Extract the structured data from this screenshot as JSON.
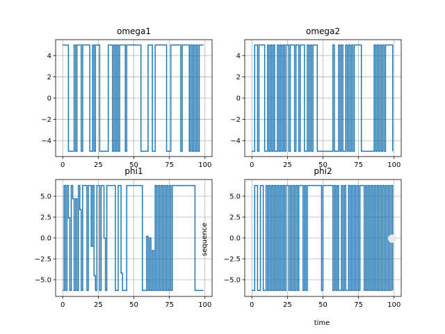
{
  "figure": {
    "xlabel": "time",
    "ylabel": "sequence"
  },
  "chart_data": [
    {
      "type": "line",
      "title": "omega1",
      "xlim": [
        -5,
        105
      ],
      "ylim": [
        -5.5,
        5.5
      ],
      "xticks": [
        0,
        25,
        50,
        75,
        100
      ],
      "xticklabels": [
        "0",
        "25",
        "50",
        "75",
        "100"
      ],
      "yticks": [
        4,
        2,
        0,
        -2,
        -4
      ],
      "yticklabels": [
        "4",
        "2",
        "0",
        "−2",
        "−4"
      ],
      "grid": true,
      "color": "#1f77b4",
      "series": [
        {
          "x": [
            0,
            1,
            2,
            3,
            4,
            5,
            6,
            7,
            8,
            9,
            10,
            11,
            12,
            13,
            14,
            15,
            16,
            17,
            18,
            19,
            20,
            21,
            22,
            23,
            24,
            25,
            26,
            27,
            28,
            29,
            30,
            31,
            32,
            33,
            34,
            35,
            36,
            37,
            38,
            39,
            40,
            41,
            42,
            43,
            44,
            45,
            46,
            47,
            48,
            49,
            50,
            51,
            52,
            53,
            54,
            55,
            56,
            57,
            58,
            59,
            60,
            61,
            62,
            63,
            64,
            65,
            66,
            67,
            68,
            69,
            70,
            71,
            72,
            73,
            74,
            75,
            76,
            77,
            78,
            79,
            80,
            81,
            82,
            83,
            84,
            85,
            86,
            87,
            88,
            89,
            90,
            91,
            92,
            93,
            94,
            95,
            96,
            97,
            98,
            99
          ],
          "y": [
            5,
            5,
            5,
            5,
            -5,
            -5,
            -5,
            -5,
            5,
            -5,
            5,
            5,
            5,
            -5,
            5,
            5,
            5,
            5,
            5,
            -5,
            -5,
            5,
            -5,
            5,
            5,
            5,
            -5,
            -5,
            -5,
            -5,
            -5,
            -5,
            5,
            5,
            5,
            -5,
            5,
            -5,
            5,
            -5,
            5,
            5,
            5,
            5,
            -5,
            5,
            5,
            5,
            5,
            5,
            5,
            5,
            5,
            5,
            5,
            -5,
            -5,
            -5,
            -5,
            -5,
            5,
            5,
            5,
            -5,
            -5,
            5,
            5,
            5,
            5,
            5,
            5,
            5,
            5,
            -5,
            -5,
            -5,
            5,
            5,
            5,
            5,
            5,
            5,
            5,
            -5,
            5,
            5,
            5,
            5,
            5,
            -5,
            5,
            -5,
            5,
            -5,
            5,
            -5,
            5,
            5,
            5,
            5
          ]
        }
      ]
    },
    {
      "type": "line",
      "title": "omega2",
      "xlim": [
        -5,
        105
      ],
      "ylim": [
        -5.5,
        5.5
      ],
      "xticks": [
        0,
        25,
        50,
        75,
        100
      ],
      "xticklabels": [
        "0",
        "25",
        "50",
        "75",
        "100"
      ],
      "yticks": [
        4,
        2,
        0,
        -2,
        -4
      ],
      "yticklabels": [
        "4",
        "2",
        "0",
        "−2",
        "−4"
      ],
      "grid": true,
      "color": "#1f77b4",
      "series": [
        {
          "x": [
            0,
            1,
            2,
            3,
            4,
            5,
            6,
            7,
            8,
            9,
            10,
            11,
            12,
            13,
            14,
            15,
            16,
            17,
            18,
            19,
            20,
            21,
            22,
            23,
            24,
            25,
            26,
            27,
            28,
            29,
            30,
            31,
            32,
            33,
            34,
            35,
            36,
            37,
            38,
            39,
            40,
            41,
            42,
            43,
            44,
            45,
            46,
            47,
            48,
            49,
            50,
            51,
            52,
            53,
            54,
            55,
            56,
            57,
            58,
            59,
            60,
            61,
            62,
            63,
            64,
            65,
            66,
            67,
            68,
            69,
            70,
            71,
            72,
            73,
            74,
            75,
            76,
            77,
            78,
            79,
            80,
            81,
            82,
            83,
            84,
            85,
            86,
            87,
            88,
            89,
            90,
            91,
            92,
            93,
            94,
            95,
            96,
            97,
            98,
            99
          ],
          "y": [
            -5,
            -5,
            5,
            5,
            -5,
            5,
            5,
            5,
            5,
            -5,
            -5,
            5,
            -5,
            5,
            -5,
            5,
            -5,
            -5,
            5,
            -5,
            5,
            -5,
            5,
            -5,
            5,
            5,
            -5,
            5,
            5,
            5,
            -5,
            5,
            5,
            -5,
            5,
            5,
            5,
            -5,
            -5,
            5,
            -5,
            5,
            -5,
            5,
            5,
            5,
            -5,
            -5,
            -5,
            -5,
            -5,
            -5,
            -5,
            -5,
            -5,
            -5,
            -5,
            5,
            -5,
            -5,
            -5,
            5,
            -5,
            5,
            -5,
            -5,
            5,
            -5,
            5,
            -5,
            5,
            -5,
            5,
            5,
            5,
            5,
            5,
            -5,
            -5,
            -5,
            -5,
            -5,
            -5,
            -5,
            -5,
            -5,
            5,
            -5,
            5,
            -5,
            5,
            -5,
            5,
            -5,
            5,
            5,
            5,
            5,
            5,
            -5
          ]
        }
      ]
    },
    {
      "type": "line",
      "title": "phi1",
      "xlim": [
        -5,
        105
      ],
      "ylim": [
        -7,
        7
      ],
      "xticks": [
        0,
        25,
        50,
        75,
        100
      ],
      "xticklabels": [
        "0",
        "25",
        "50",
        "75",
        "100"
      ],
      "yticks": [
        5,
        2.5,
        0,
        -2.5,
        -5
      ],
      "yticklabels": [
        "5.0",
        "2.5",
        "0.0",
        "−2.5",
        "−5.0"
      ],
      "grid": true,
      "color": "#1f77b4",
      "series": [
        {
          "x": [
            0,
            1,
            2,
            3,
            4,
            5,
            6,
            7,
            8,
            9,
            10,
            11,
            12,
            13,
            14,
            15,
            16,
            17,
            18,
            19,
            20,
            21,
            22,
            23,
            24,
            25,
            26,
            27,
            28,
            29,
            30,
            31,
            32,
            33,
            34,
            35,
            36,
            37,
            38,
            39,
            40,
            41,
            42,
            43,
            44,
            45,
            46,
            47,
            48,
            49,
            50,
            51,
            52,
            53,
            54,
            55,
            56,
            57,
            58,
            59,
            60,
            61,
            62,
            63,
            64,
            65,
            66,
            67,
            68,
            69,
            70,
            71,
            72,
            73,
            74,
            75,
            76,
            77,
            78,
            79,
            80,
            81,
            82,
            83,
            84,
            85,
            86,
            87,
            88,
            89,
            90,
            91,
            92,
            93,
            94,
            95,
            96,
            97,
            98,
            99
          ],
          "y": [
            -6.28,
            6.28,
            -6.28,
            6.28,
            2.4,
            -6.28,
            6.28,
            4.7,
            -6.28,
            4.7,
            -6.28,
            6.28,
            3.4,
            -6.28,
            6.28,
            6.28,
            6.28,
            -6.28,
            6.28,
            6.28,
            -1,
            6.28,
            -4.5,
            -6.28,
            6.28,
            6.28,
            -6.28,
            6.28,
            6.28,
            0,
            -6.28,
            6.28,
            6.28,
            6.28,
            6.28,
            6.28,
            6.28,
            -6.28,
            -6.28,
            6.28,
            6.28,
            -4.2,
            -6.28,
            -6.28,
            -6.28,
            6.28,
            6.28,
            6.28,
            6.28,
            6.28,
            6.28,
            6.28,
            6.28,
            6.28,
            6.28,
            6.28,
            -6.28,
            -6.28,
            -6.28,
            0.2,
            -6.28,
            0,
            -6.28,
            -1.5,
            -6.28,
            6.28,
            -6.28,
            6.28,
            -6.28,
            6.28,
            -6.28,
            6.28,
            -6.28,
            6.28,
            -6.28,
            6.28,
            -6.28,
            6.28,
            6.28,
            6.28,
            6.28,
            6.28,
            6.28,
            6.28,
            6.28,
            6.28,
            6.28,
            6.28,
            6.28,
            6.28,
            6.28,
            6.28,
            6.28,
            -6.28,
            -6.28,
            -6.28,
            -6.28,
            -6.28,
            -6.28,
            -6.28
          ]
        }
      ]
    },
    {
      "type": "line",
      "title": "phi2",
      "xlim": [
        -5,
        105
      ],
      "ylim": [
        -7,
        7
      ],
      "xticks": [
        0,
        25,
        50,
        75,
        100
      ],
      "xticklabels": [
        "0",
        "25",
        "50",
        "75",
        "100"
      ],
      "yticks": [
        5,
        2.5,
        0,
        -2.5,
        -5
      ],
      "yticklabels": [
        "5.0",
        "2.5",
        "0.0",
        "−2.5",
        "−5.0"
      ],
      "grid": true,
      "color": "#1f77b4",
      "series": [
        {
          "x": [
            0,
            1,
            2,
            3,
            4,
            5,
            6,
            7,
            8,
            9,
            10,
            11,
            12,
            13,
            14,
            15,
            16,
            17,
            18,
            19,
            20,
            21,
            22,
            23,
            24,
            25,
            26,
            27,
            28,
            29,
            30,
            31,
            32,
            33,
            34,
            35,
            36,
            37,
            38,
            39,
            40,
            41,
            42,
            43,
            44,
            45,
            46,
            47,
            48,
            49,
            50,
            51,
            52,
            53,
            54,
            55,
            56,
            57,
            58,
            59,
            60,
            61,
            62,
            63,
            64,
            65,
            66,
            67,
            68,
            69,
            70,
            71,
            72,
            73,
            74,
            75,
            76,
            77,
            78,
            79,
            80,
            81,
            82,
            83,
            84,
            85,
            86,
            87,
            88,
            89,
            90,
            91,
            92,
            93,
            94,
            95,
            96,
            97,
            98,
            99
          ],
          "y": [
            -6.28,
            -6.28,
            6.28,
            6.28,
            -6.28,
            -6.28,
            6.28,
            6.28,
            -6.28,
            -6.28,
            6.28,
            -6.28,
            6.28,
            -6.28,
            6.28,
            -6.28,
            6.28,
            -6.28,
            6.28,
            -6.28,
            6.28,
            -6.28,
            6.28,
            -6.28,
            6.28,
            6.28,
            -6.28,
            6.28,
            -6.28,
            6.28,
            -6.28,
            6.28,
            -6.28,
            6.28,
            6.28,
            6.28,
            -6.28,
            6.28,
            -6.28,
            6.28,
            6.28,
            6.28,
            6.28,
            6.28,
            6.28,
            6.28,
            6.28,
            6.28,
            6.28,
            -6.28,
            6.28,
            6.28,
            6.28,
            6.28,
            6.28,
            6.28,
            6.28,
            -6.28,
            6.28,
            -6.28,
            6.28,
            -6.28,
            -6.28,
            6.28,
            -6.28,
            6.28,
            -6.28,
            -6.28,
            6.28,
            -6.28,
            6.28,
            -6.28,
            6.28,
            -6.28,
            6.28,
            -6.28,
            6.28,
            6.28,
            6.28,
            -6.28,
            6.28,
            -6.28,
            6.28,
            -6.28,
            6.28,
            -6.28,
            6.28,
            -6.28,
            6.28,
            -6.28,
            6.28,
            -6.28,
            6.28,
            -6.28,
            6.28,
            -6.28,
            6.28,
            -6.28,
            6.28,
            -6.28
          ]
        }
      ]
    }
  ]
}
